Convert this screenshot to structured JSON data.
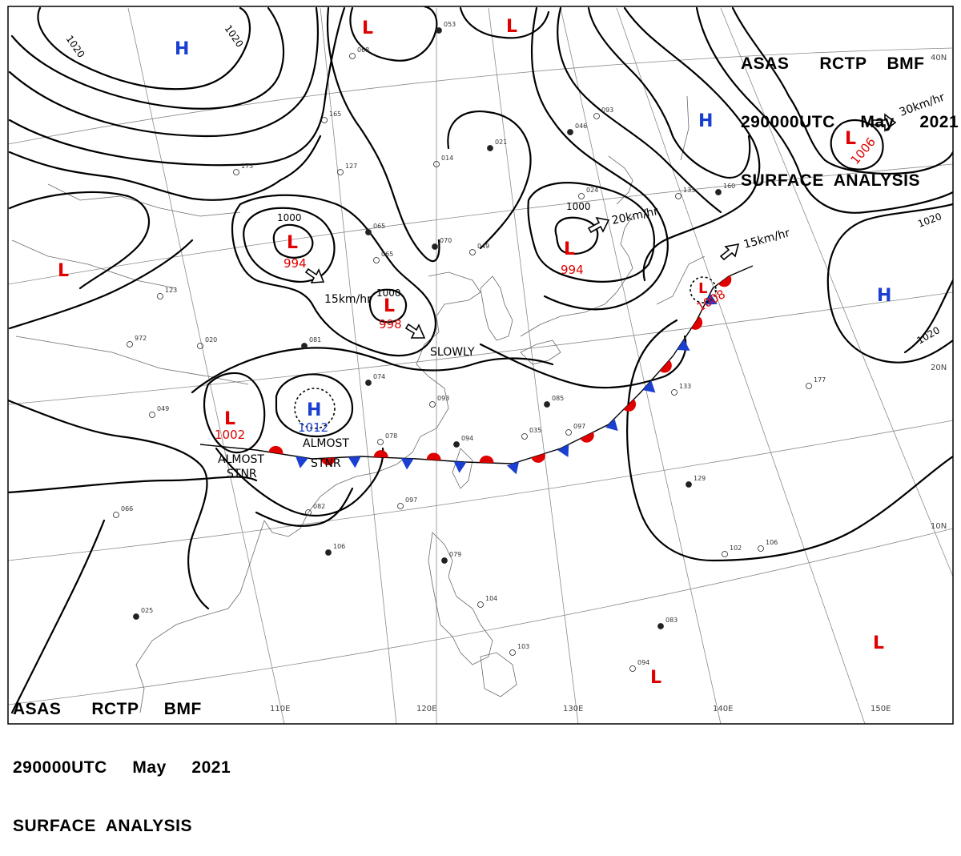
{
  "header_top": {
    "line1": "ASAS      RCTP    BMF",
    "line2": "290000UTC     May     2021",
    "line3": "SURFACE  ANALYSIS"
  },
  "header_bottom": {
    "line1": "ASAS      RCTP     BMF",
    "line2": "290000UTC     May     2021",
    "line3": "SURFACE  ANALYSIS"
  },
  "grid_labels": {
    "lon": [
      "110E",
      "120E",
      "130E",
      "140E",
      "150E"
    ],
    "lat": [
      "40N",
      "20N",
      "10N"
    ]
  },
  "pressure_centers": [
    {
      "type": "H",
      "pressure": "",
      "color": "#1a3fd1"
    },
    {
      "type": "L",
      "pressure": "",
      "color": "#e00000"
    },
    {
      "type": "L",
      "pressure": "",
      "color": "#e00000"
    },
    {
      "type": "L",
      "pressure": "1006",
      "color": "#e00000"
    },
    {
      "type": "H",
      "pressure": "",
      "color": "#1a3fd1"
    },
    {
      "type": "L",
      "pressure": "994",
      "color": "#e00000"
    },
    {
      "type": "L",
      "pressure": "998",
      "color": "#e00000"
    },
    {
      "type": "L",
      "pressure": "994",
      "color": "#e00000"
    },
    {
      "type": "L",
      "pressure": "1008",
      "color": "#e00000"
    },
    {
      "type": "L",
      "pressure": "",
      "color": "#e00000"
    },
    {
      "type": "H",
      "pressure": "",
      "color": "#1a3fd1"
    },
    {
      "type": "L",
      "pressure": "1002",
      "color": "#e00000"
    },
    {
      "type": "H",
      "pressure": "1012",
      "color": "#1a3fd1"
    },
    {
      "type": "L",
      "pressure": "",
      "color": "#e00000"
    },
    {
      "type": "L",
      "pressure": "",
      "color": "#e00000"
    }
  ],
  "isobar_labels": [
    "1020",
    "1020",
    "1000",
    "1000",
    "1000",
    "1020",
    "1020"
  ],
  "movement": [
    {
      "text": "30km/hr"
    },
    {
      "text": "20km/hr"
    },
    {
      "text": "15km/hr"
    },
    {
      "text": "15km/hr"
    },
    {
      "text": "SLOWLY"
    }
  ],
  "annotations": [
    "ALMOST",
    "STNR",
    "ALMOST",
    "STNR"
  ],
  "front": {
    "type": "stationary",
    "warm_color": "#e00000",
    "cold_color": "#1a3fd1"
  },
  "station_numbers": [
    "053",
    "068",
    "165",
    "065",
    "127",
    "173",
    "021",
    "014",
    "065",
    "070",
    "049",
    "024",
    "046",
    "093",
    "133",
    "160",
    "123",
    "020",
    "081",
    "972",
    "049",
    "074",
    "093",
    "078",
    "094",
    "035",
    "097",
    "085",
    "133",
    "177",
    "129",
    "102",
    "106",
    "083",
    "094",
    "104",
    "079",
    "103",
    "097",
    "106",
    "082",
    "066",
    "025"
  ]
}
